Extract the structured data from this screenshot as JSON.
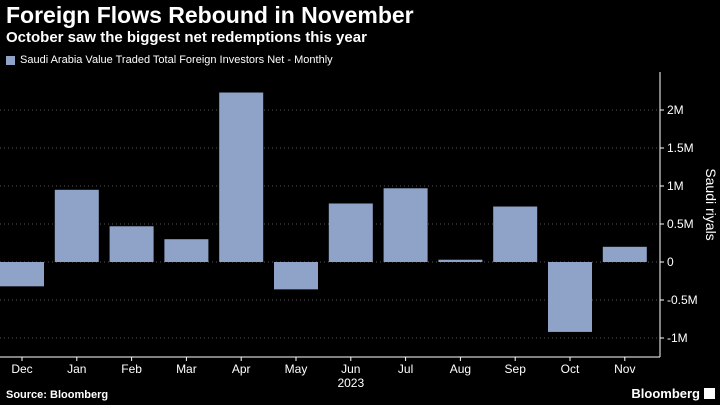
{
  "header": {
    "title": "Foreign Flows Rebound in November",
    "subtitle": "October saw the biggest net redemptions this year"
  },
  "footer": {
    "source": "Source: Bloomberg",
    "brand": "Bloomberg"
  },
  "colors": {
    "background": "#000000",
    "bar": "#8fa3c8",
    "grid": "#555555",
    "text": "#ffffff"
  },
  "chart_data": {
    "type": "bar",
    "legend": [
      "Saudi Arabia Value Traded Total Foreign Investors Net - Monthly"
    ],
    "legend_position": "top-left",
    "categories": [
      "Dec",
      "Jan",
      "Feb",
      "Mar",
      "Apr",
      "May",
      "Jun",
      "Jul",
      "Aug",
      "Sep",
      "Oct",
      "Nov"
    ],
    "year_label": "2023",
    "series": [
      {
        "name": "Saudi Arabia Value Traded Total Foreign Investors Net - Monthly",
        "values": [
          -320000,
          950000,
          470000,
          300000,
          2230000,
          -360000,
          770000,
          970000,
          30000,
          730000,
          -920000,
          200000
        ]
      }
    ],
    "ylabel": "Saudi riyals",
    "ylim": [
      -1250000,
      2500000
    ],
    "yticks": [
      -1000000,
      -500000,
      0,
      500000,
      1000000,
      1500000,
      2000000
    ],
    "ytick_labels": [
      "-1M",
      "-0.5M",
      "0",
      "0.5M",
      "1M",
      "1.5M",
      "2M"
    ],
    "y_axis_side": "right",
    "grid": true
  }
}
